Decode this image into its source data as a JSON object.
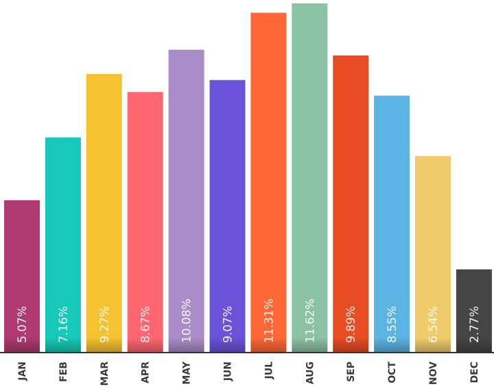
{
  "chart_data": {
    "type": "bar",
    "title": "",
    "xlabel": "",
    "ylabel": "",
    "categories": [
      "JAN",
      "FEB",
      "MAR",
      "APR",
      "MAY",
      "JUN",
      "JUL",
      "AUG",
      "SEP",
      "OCT",
      "NOV",
      "DEC"
    ],
    "values": [
      5.07,
      7.16,
      9.27,
      8.67,
      10.08,
      9.07,
      11.31,
      11.62,
      9.89,
      8.55,
      6.54,
      2.77
    ],
    "value_labels": [
      "5.07%",
      "7.16%",
      "9.27%",
      "8.67%",
      "10.08%",
      "9.07%",
      "11.31%",
      "11.62%",
      "9.89%",
      "8.55%",
      "6.54%",
      "2.77%"
    ],
    "colors": [
      "#b03a72",
      "#16c9b8",
      "#f5c331",
      "#ff6670",
      "#aa8dc8",
      "#6b53d9",
      "#ff6836",
      "#8cc2a4",
      "#e84c23",
      "#5cb4e4",
      "#f0cb6c",
      "#454545"
    ],
    "ylim": [
      0,
      11.62
    ],
    "grid": false,
    "legend": "none"
  }
}
